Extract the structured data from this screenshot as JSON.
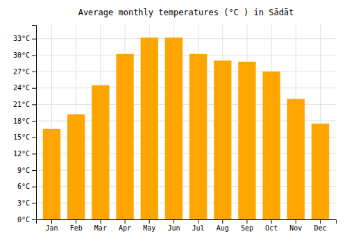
{
  "chart_data": {
    "type": "bar",
    "title": "Average monthly temperatures (°C ) in Sādāt",
    "categories": [
      "Jan",
      "Feb",
      "Mar",
      "Apr",
      "May",
      "Jun",
      "Jul",
      "Aug",
      "Sep",
      "Oct",
      "Nov",
      "Dec"
    ],
    "values": [
      16.5,
      19.2,
      24.5,
      30.2,
      33.2,
      33.2,
      30.2,
      29.0,
      28.8,
      27.0,
      22.0,
      17.5
    ],
    "color": "#FFA500",
    "ylim": [
      0,
      35.5
    ],
    "yticks": [
      {
        "value": 0,
        "label": "0°C"
      },
      {
        "value": 3,
        "label": "3°C"
      },
      {
        "value": 6,
        "label": "6°C"
      },
      {
        "value": 9,
        "label": "9°C"
      },
      {
        "value": 12,
        "label": "12°C"
      },
      {
        "value": 15,
        "label": "15°C"
      },
      {
        "value": 18,
        "label": "18°C"
      },
      {
        "value": 21,
        "label": "21°C"
      },
      {
        "value": 24,
        "label": "24°C"
      },
      {
        "value": 27,
        "label": "27°C"
      },
      {
        "value": 30,
        "label": "30°C"
      },
      {
        "value": 33,
        "label": "33°C"
      }
    ],
    "grid": true
  }
}
